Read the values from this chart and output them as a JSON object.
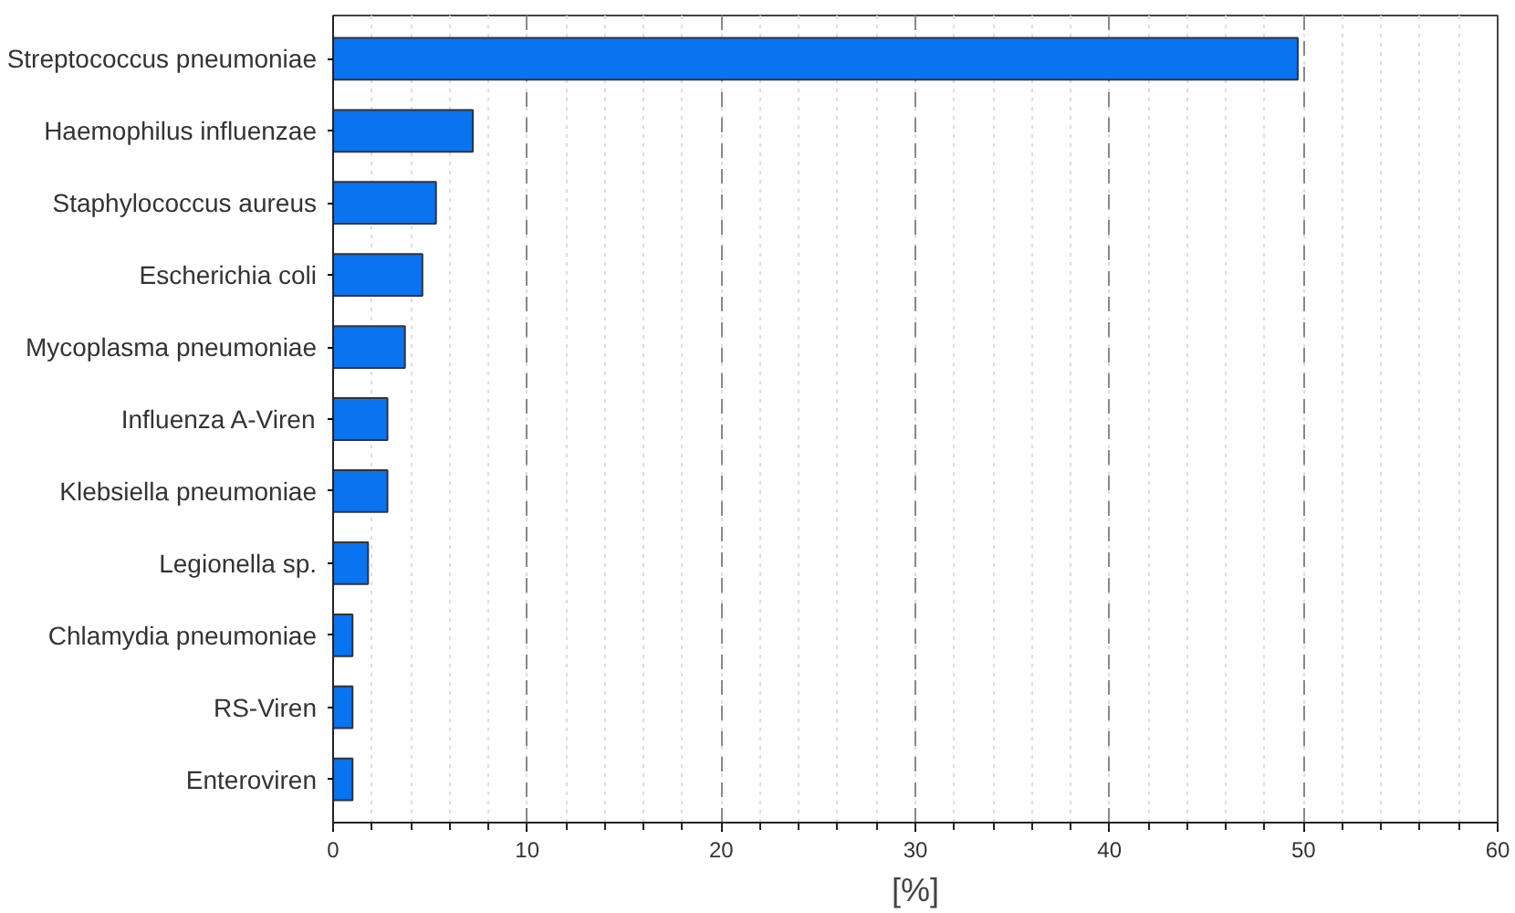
{
  "chart_data": {
    "type": "bar",
    "orientation": "horizontal",
    "xlabel": "[%]",
    "categories": [
      "Streptococcus pneumoniae",
      "Haemophilus influenzae",
      "Staphylococcus aureus",
      "Escherichia coli",
      "Mycoplasma pneumoniae",
      "Influenza A-Viren",
      "Klebsiella pneumoniae",
      "Legionella sp.",
      "Chlamydia pneumoniae",
      "RS-Viren",
      "Enteroviren"
    ],
    "values": [
      49.7,
      7.2,
      5.3,
      4.6,
      3.7,
      2.8,
      2.8,
      1.8,
      1.0,
      1.0,
      1.0
    ],
    "color": "#0a73f0",
    "xlim": [
      0,
      60
    ],
    "xticks": [
      0,
      10,
      20,
      30,
      40,
      50,
      60
    ],
    "grid": "x"
  }
}
